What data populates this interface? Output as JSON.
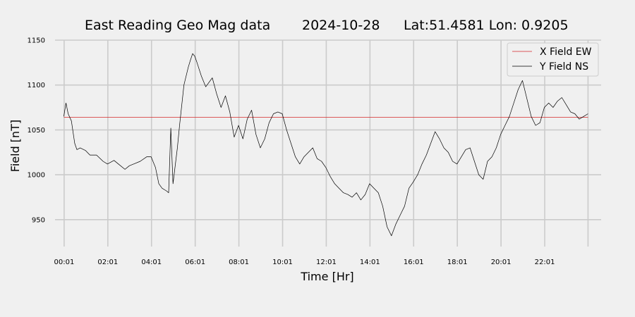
{
  "chart_data": {
    "type": "line",
    "title": {
      "main": "East Reading Geo Mag data",
      "date": "2024-10-28",
      "location": "Lat:51.4581  Lon: 0.9205"
    },
    "xlabel": "Time  [Hr]",
    "ylabel": "Field  [nT]",
    "xlim": [
      -0.4,
      24.6
    ],
    "ylim": [
      920,
      1150
    ],
    "x_ticks": [
      {
        "x": 0.017,
        "label": "00:01"
      },
      {
        "x": 2.017,
        "label": "02:01"
      },
      {
        "x": 4.017,
        "label": "04:01"
      },
      {
        "x": 6.017,
        "label": "06:01"
      },
      {
        "x": 8.017,
        "label": "08:01"
      },
      {
        "x": 10.017,
        "label": "10:01"
      },
      {
        "x": 12.017,
        "label": "12:01"
      },
      {
        "x": 14.017,
        "label": "14:01"
      },
      {
        "x": 16.017,
        "label": "16:01"
      },
      {
        "x": 18.017,
        "label": "18:01"
      },
      {
        "x": 20.017,
        "label": "20:01"
      },
      {
        "x": 22.017,
        "label": "22:01"
      }
    ],
    "x_gridlines": [
      0.017,
      2.017,
      4.017,
      6.017,
      8.017,
      10.017,
      12.017,
      14.017,
      16.017,
      18.017,
      20.017,
      22.017,
      24.0
    ],
    "y_ticks": [
      950,
      1000,
      1050,
      1100,
      1150
    ],
    "grid": true,
    "legend_position": "top-right",
    "colors": {
      "background": "#f0f0f0",
      "grid": "#cbcbcb",
      "x_series": "#d62728",
      "y_series": "#000000"
    },
    "series": [
      {
        "name": "X Field EW",
        "x": [
          0.0,
          24.0
        ],
        "y": [
          1064,
          1064
        ]
      },
      {
        "name": "Y Field NS",
        "x": [
          0.0,
          0.1,
          0.2,
          0.35,
          0.5,
          0.6,
          0.75,
          1.0,
          1.2,
          1.5,
          1.8,
          2.0,
          2.3,
          2.5,
          2.8,
          3.0,
          3.2,
          3.5,
          3.8,
          4.0,
          4.2,
          4.35,
          4.5,
          4.7,
          4.8,
          4.9,
          5.0,
          5.1,
          5.2,
          5.3,
          5.5,
          5.7,
          5.8,
          5.9,
          6.0,
          6.1,
          6.3,
          6.5,
          6.8,
          7.0,
          7.2,
          7.4,
          7.6,
          7.8,
          8.0,
          8.2,
          8.4,
          8.6,
          8.8,
          9.0,
          9.2,
          9.4,
          9.6,
          9.8,
          10.0,
          10.2,
          10.4,
          10.6,
          10.8,
          11.0,
          11.2,
          11.4,
          11.6,
          11.8,
          12.0,
          12.2,
          12.4,
          12.6,
          12.8,
          13.0,
          13.2,
          13.4,
          13.6,
          13.8,
          14.0,
          14.2,
          14.4,
          14.6,
          14.8,
          15.0,
          15.2,
          15.4,
          15.6,
          15.8,
          16.0,
          16.2,
          16.4,
          16.6,
          16.8,
          17.0,
          17.2,
          17.4,
          17.6,
          17.8,
          18.0,
          18.2,
          18.4,
          18.6,
          18.8,
          19.0,
          19.2,
          19.4,
          19.6,
          19.8,
          20.0,
          20.2,
          20.4,
          20.6,
          20.8,
          21.0,
          21.2,
          21.4,
          21.6,
          21.8,
          22.0,
          22.2,
          22.4,
          22.6,
          22.8,
          23.0,
          23.2,
          23.4,
          23.6,
          23.8,
          24.0
        ],
        "y": [
          1065,
          1080,
          1068,
          1060,
          1035,
          1028,
          1030,
          1027,
          1022,
          1022,
          1015,
          1012,
          1016,
          1012,
          1006,
          1010,
          1012,
          1015,
          1020,
          1020,
          1008,
          990,
          985,
          982,
          980,
          1052,
          990,
          1010,
          1030,
          1055,
          1100,
          1120,
          1128,
          1135,
          1132,
          1125,
          1110,
          1098,
          1108,
          1090,
          1075,
          1088,
          1070,
          1042,
          1055,
          1040,
          1062,
          1072,
          1045,
          1030,
          1040,
          1058,
          1068,
          1070,
          1068,
          1050,
          1035,
          1020,
          1012,
          1020,
          1025,
          1030,
          1018,
          1015,
          1008,
          998,
          990,
          985,
          980,
          978,
          975,
          980,
          972,
          978,
          990,
          985,
          980,
          965,
          942,
          932,
          945,
          955,
          965,
          985,
          992,
          1000,
          1012,
          1022,
          1035,
          1048,
          1040,
          1030,
          1025,
          1015,
          1012,
          1020,
          1028,
          1030,
          1015,
          1000,
          995,
          1015,
          1020,
          1030,
          1045,
          1055,
          1065,
          1080,
          1095,
          1105,
          1085,
          1065,
          1055,
          1058,
          1075,
          1080,
          1075,
          1082,
          1086,
          1078,
          1070,
          1068,
          1062,
          1065,
          1068
        ]
      }
    ]
  }
}
